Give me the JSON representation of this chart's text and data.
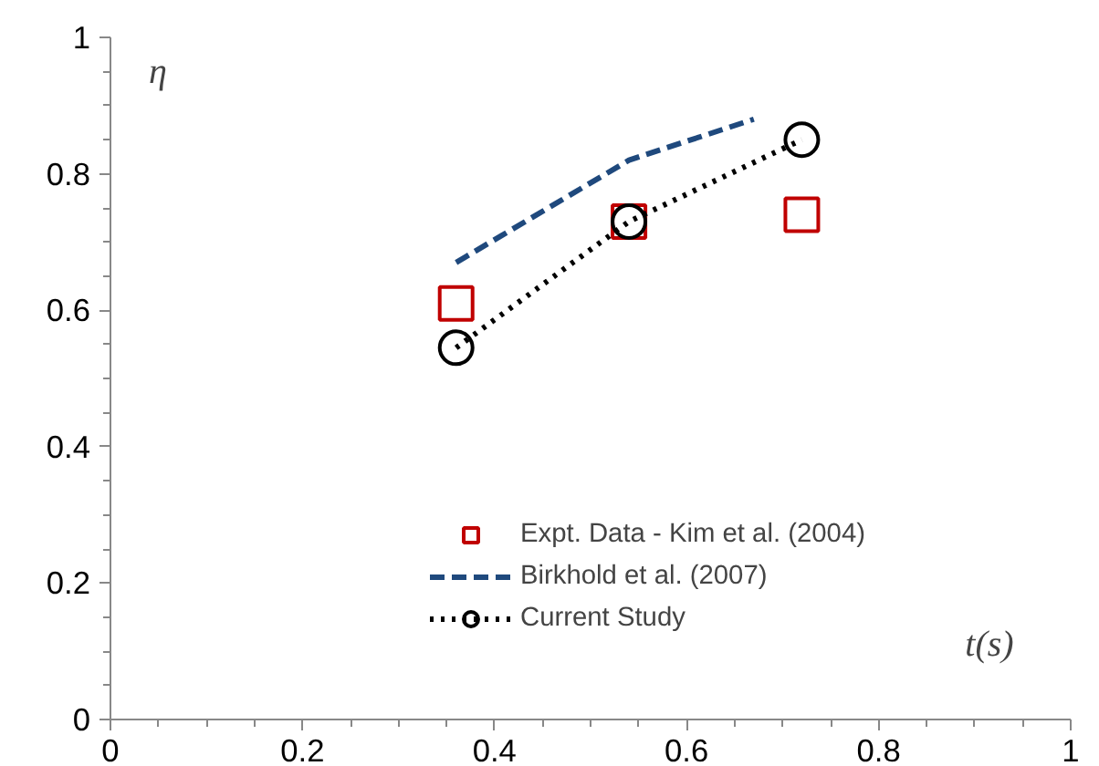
{
  "chart_data": {
    "type": "scatter",
    "xlabel": "t(s)",
    "ylabel": "η",
    "xlim": [
      0,
      1
    ],
    "ylim": [
      0,
      1
    ],
    "xticks": [
      0,
      0.2,
      0.4,
      0.6,
      0.8,
      1
    ],
    "yticks": [
      0,
      0.2,
      0.4,
      0.6,
      0.8,
      1
    ],
    "grid": false,
    "legend": "bottom right",
    "series": [
      {
        "name": "Expt. Data - Kim et al. (2004)",
        "marker": "square",
        "color": "#c00000",
        "x": [
          0.36,
          0.54,
          0.72
        ],
        "values": [
          0.61,
          0.73,
          0.74
        ]
      },
      {
        "name": "Birkhold et al. (2007)",
        "type": "line",
        "marker": "none",
        "line_style": "dashed",
        "color": "#1f497d",
        "x": [
          0.36,
          0.54,
          0.67
        ],
        "values": [
          0.67,
          0.82,
          0.88
        ]
      },
      {
        "name": "Current Study",
        "type": "line",
        "marker": "circle",
        "line_style": "dotted",
        "color": "#000000",
        "x": [
          0.36,
          0.54,
          0.72
        ],
        "values": [
          0.545,
          0.73,
          0.85
        ]
      }
    ]
  }
}
